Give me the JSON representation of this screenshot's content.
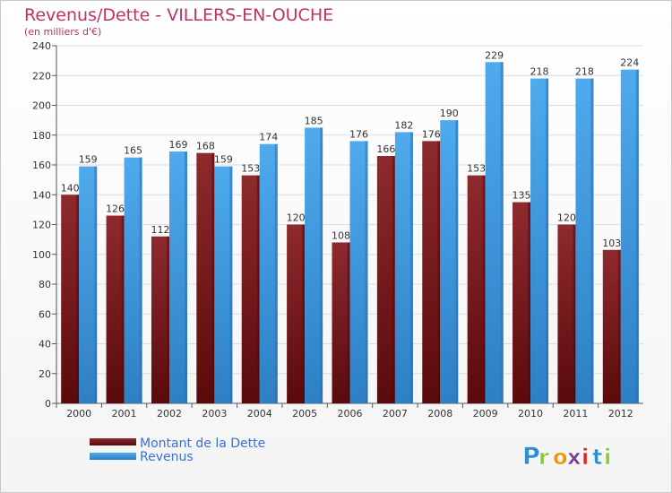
{
  "chart_data": {
    "type": "bar",
    "title": "Revenus/Dette - VILLERS-EN-OUCHE",
    "subtitle": "(en milliers d'€)",
    "categories": [
      "2000",
      "2001",
      "2002",
      "2003",
      "2004",
      "2005",
      "2006",
      "2007",
      "2008",
      "2009",
      "2010",
      "2011",
      "2012"
    ],
    "series": [
      {
        "name": "Montant de la Dette",
        "color": "#7a1a1e",
        "values": [
          140,
          126,
          112,
          168,
          153,
          120,
          108,
          166,
          176,
          153,
          135,
          120,
          103
        ]
      },
      {
        "name": "Revenus",
        "color": "#3f9ae0",
        "values": [
          159,
          165,
          169,
          159,
          174,
          185,
          176,
          182,
          190,
          229,
          218,
          218,
          224
        ]
      }
    ],
    "ylim": [
      0,
      240
    ],
    "yticks": [
      0,
      20,
      40,
      60,
      80,
      100,
      120,
      140,
      160,
      180,
      200,
      220,
      240
    ],
    "grid": true,
    "legend": "bottom-left"
  },
  "brand": {
    "letters": [
      "P",
      "r",
      "o",
      "x",
      "i",
      "t",
      "i"
    ],
    "colors": [
      "#2b8fd6",
      "#8cc63f",
      "#f39200",
      "#7b3f98",
      "#e42320",
      "#2b8fd6",
      "#8cc63f"
    ]
  }
}
